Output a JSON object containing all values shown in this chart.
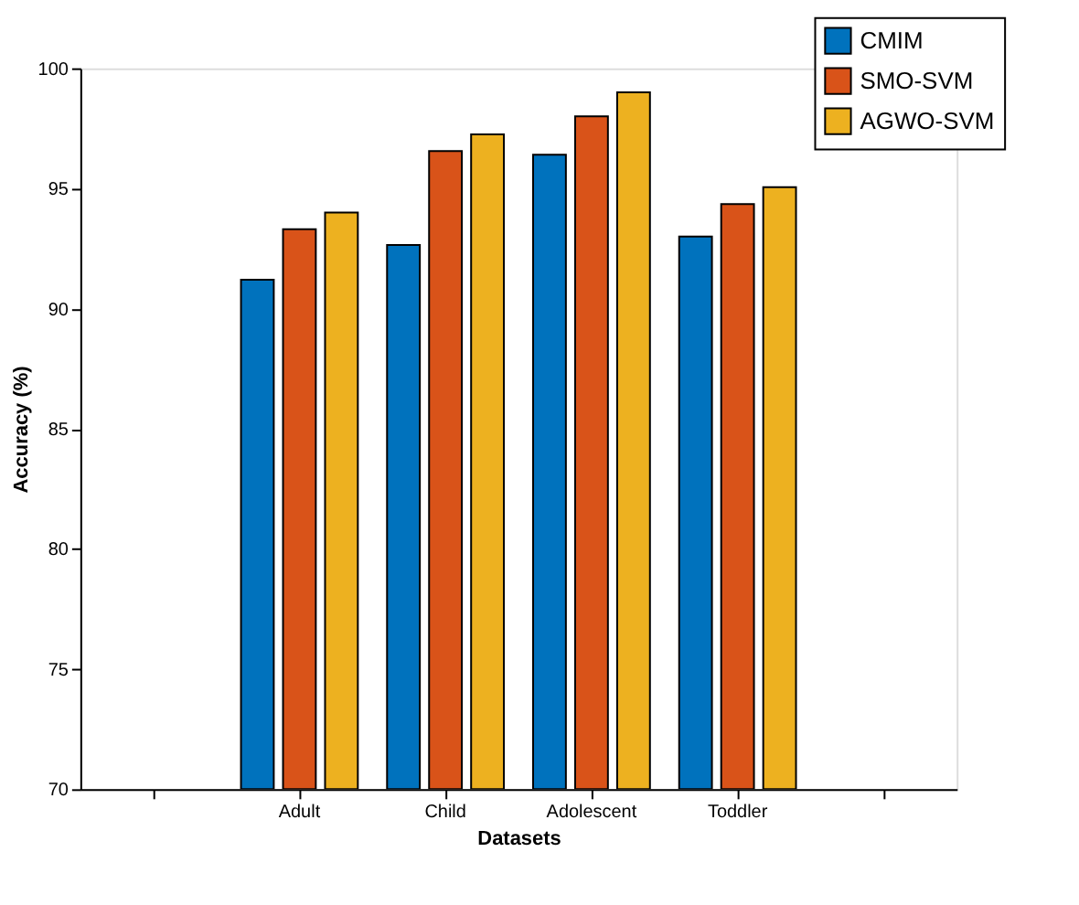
{
  "chart_data": {
    "type": "bar",
    "xlabel": "Datasets",
    "ylabel": "Accuracy (%)",
    "categories": [
      null,
      "Adult",
      "Child",
      "Adolescent",
      "Toddler",
      null
    ],
    "series": [
      {
        "name": "CMIM",
        "color": "#0072bd",
        "values": [
          null,
          91.2,
          92.65,
          96.4,
          93.0,
          null
        ]
      },
      {
        "name": "SMO-SVM",
        "color": "#d95319",
        "values": [
          null,
          93.3,
          96.55,
          98.0,
          94.35,
          null
        ]
      },
      {
        "name": "AGWO-SVM",
        "color": "#edb120",
        "values": [
          null,
          94.0,
          97.25,
          99.0,
          95.05,
          null
        ]
      }
    ],
    "ylim": [
      70,
      100
    ],
    "yticks": [
      70,
      75,
      80,
      85,
      90,
      95,
      100
    ],
    "grid": false,
    "legend": "top right"
  }
}
